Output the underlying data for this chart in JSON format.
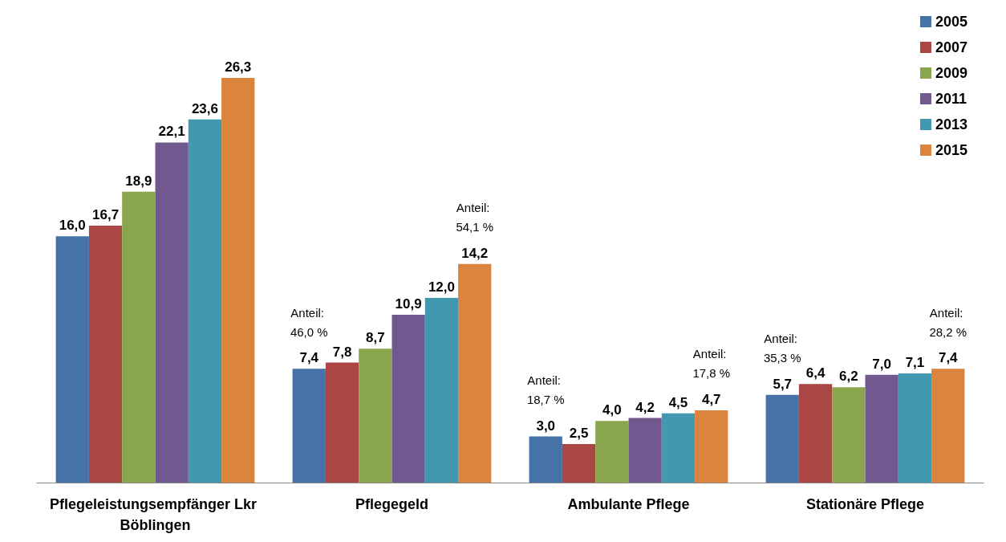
{
  "chart_data": {
    "type": "bar",
    "categories": [
      "Pflegeleistungsempfänger Lkr Böblingen",
      "Pflegegeld",
      "Ambulante Pflege",
      "Stationäre Pflege"
    ],
    "series": [
      {
        "name": "2005",
        "color": "#4572a7",
        "values": [
          16.0,
          7.4,
          3.0,
          5.7
        ],
        "value_labels": [
          "16,0",
          "7,4",
          "3,0",
          "5,7"
        ]
      },
      {
        "name": "2007",
        "color": "#aa4643",
        "values": [
          16.7,
          7.8,
          2.5,
          6.4
        ],
        "value_labels": [
          "16,7",
          "7,8",
          "2,5",
          "6,4"
        ]
      },
      {
        "name": "2009",
        "color": "#89a54e",
        "values": [
          18.9,
          8.7,
          4.0,
          6.2
        ],
        "value_labels": [
          "18,9",
          "8,7",
          "4,0",
          "6,2"
        ]
      },
      {
        "name": "2011",
        "color": "#71588f",
        "values": [
          22.1,
          10.9,
          4.2,
          7.0
        ],
        "value_labels": [
          "22,1",
          "10,9",
          "4,2",
          "7,0"
        ]
      },
      {
        "name": "2013",
        "color": "#4198af",
        "values": [
          23.6,
          12.0,
          4.5,
          7.1
        ],
        "value_labels": [
          "23,6",
          "12,0",
          "4,5",
          "7,1"
        ]
      },
      {
        "name": "2015",
        "color": "#db843d",
        "values": [
          26.3,
          14.2,
          4.7,
          7.4
        ],
        "value_labels": [
          "26,3",
          "14,2",
          "4,7",
          "7,4"
        ]
      }
    ],
    "legend": "top right",
    "grid": false,
    "tick_labels": "x",
    "annotations": [
      "Anteil: 46,0 %",
      "Anteil: 54,1 %",
      "Anteil: 18,7 %",
      "Anteil: 17,8 %",
      "Anteil: 35,3 %",
      "Anteil: 28,2 %"
    ]
  }
}
